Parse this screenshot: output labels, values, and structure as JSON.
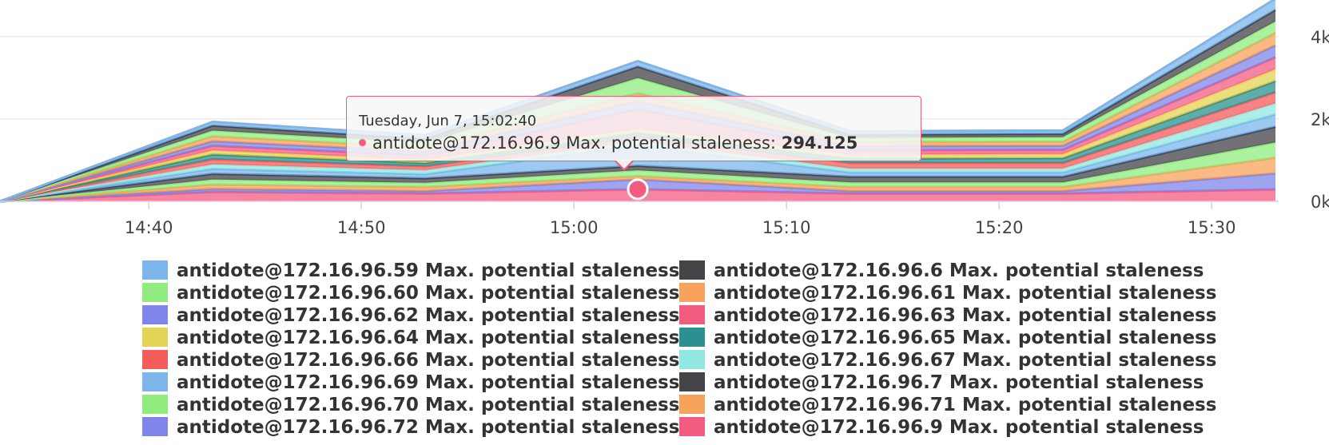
{
  "chart_data": {
    "type": "area",
    "stacked": true,
    "x": [
      "14:33",
      "14:43",
      "14:53",
      "15:03",
      "15:13",
      "15:23",
      "15:33"
    ],
    "x_ticks": [
      "14:40",
      "14:50",
      "15:00",
      "15:10",
      "15:20",
      "15:30"
    ],
    "y_ticks": [
      "0k",
      "2k",
      "4k"
    ],
    "ylim": [
      0,
      4500
    ],
    "grid": true,
    "y_axis_side": "right",
    "legend_position": "bottom",
    "series": [
      {
        "name": "antidote@172.16.96.9 Max. potential staleness",
        "color": "#f15c80",
        "values": [
          0,
          230,
          190,
          294.125,
          190,
          190,
          290
        ]
      },
      {
        "name": "antidote@172.16.96.72 Max. potential staleness",
        "color": "#8085e9",
        "values": [
          0,
          70,
          60,
          240,
          60,
          60,
          390
        ]
      },
      {
        "name": "antidote@172.16.96.71 Max. potential staleness",
        "color": "#f7a35c",
        "values": [
          0,
          110,
          100,
          80,
          100,
          100,
          380
        ]
      },
      {
        "name": "antidote@172.16.96.70 Max. potential staleness",
        "color": "#90ed7d",
        "values": [
          0,
          120,
          100,
          140,
          110,
          110,
          370
        ]
      },
      {
        "name": "antidote@172.16.96.7 Max. potential staleness",
        "color": "#434348",
        "values": [
          0,
          140,
          110,
          110,
          140,
          140,
          380
        ]
      },
      {
        "name": "antidote@172.16.96.69 Max. potential staleness",
        "color": "#7cb5ec",
        "values": [
          0,
          120,
          100,
          500,
          100,
          100,
          300
        ]
      },
      {
        "name": "antidote@172.16.96.67 Max. potential staleness",
        "color": "#91e8e1",
        "values": [
          0,
          110,
          100,
          100,
          100,
          100,
          270
        ]
      },
      {
        "name": "antidote@172.16.96.66 Max. potential staleness",
        "color": "#f45b5b",
        "values": [
          0,
          120,
          90,
          100,
          130,
          130,
          270
        ]
      },
      {
        "name": "antidote@172.16.96.65 Max. potential staleness",
        "color": "#2b908f",
        "values": [
          0,
          120,
          80,
          100,
          110,
          120,
          270
        ]
      },
      {
        "name": "antidote@172.16.96.64 Max. potential staleness",
        "color": "#e4d354",
        "values": [
          0,
          100,
          80,
          100,
          100,
          100,
          290
        ]
      },
      {
        "name": "antidote@172.16.96.63 Max. potential staleness",
        "color": "#f15c80",
        "values": [
          0,
          110,
          100,
          470,
          100,
          100,
          290
        ]
      },
      {
        "name": "antidote@172.16.96.62 Max. potential staleness",
        "color": "#8085e9",
        "values": [
          0,
          110,
          100,
          200,
          100,
          100,
          290
        ]
      },
      {
        "name": "antidote@172.16.96.61 Max. potential staleness",
        "color": "#f7a35c",
        "values": [
          0,
          120,
          100,
          190,
          100,
          100,
          300
        ]
      },
      {
        "name": "antidote@172.16.96.60 Max. potential staleness",
        "color": "#90ed7d",
        "values": [
          0,
          140,
          110,
          370,
          100,
          110,
          280
        ]
      },
      {
        "name": "antidote@172.16.96.6 Max. potential staleness",
        "color": "#434348",
        "values": [
          0,
          120,
          100,
          280,
          80,
          80,
          280
        ]
      },
      {
        "name": "antidote@172.16.96.59 Max. potential staleness",
        "color": "#7cb5ec",
        "values": [
          0,
          90,
          80,
          130,
          80,
          80,
          270
        ]
      }
    ],
    "legend": [
      [
        "antidote@172.16.96.59 Max. potential staleness",
        "antidote@172.16.96.6 Max. potential staleness"
      ],
      [
        "antidote@172.16.96.60 Max. potential staleness",
        "antidote@172.16.96.61 Max. potential staleness"
      ],
      [
        "antidote@172.16.96.62 Max. potential staleness",
        "antidote@172.16.96.63 Max. potential staleness"
      ],
      [
        "antidote@172.16.96.64 Max. potential staleness",
        "antidote@172.16.96.65 Max. potential staleness"
      ],
      [
        "antidote@172.16.96.66 Max. potential staleness",
        "antidote@172.16.96.67 Max. potential staleness"
      ],
      [
        "antidote@172.16.96.69 Max. potential staleness",
        "antidote@172.16.96.7 Max. potential staleness"
      ],
      [
        "antidote@172.16.96.70 Max. potential staleness",
        "antidote@172.16.96.71 Max. potential staleness"
      ],
      [
        "antidote@172.16.96.72 Max. potential staleness",
        "antidote@172.16.96.9 Max. potential staleness"
      ]
    ],
    "tooltip": {
      "date": "Tuesday, Jun 7, 15:02:40",
      "series": "antidote@172.16.96.9 Max. potential staleness:",
      "value": "294.125",
      "color": "#f15c80"
    }
  }
}
